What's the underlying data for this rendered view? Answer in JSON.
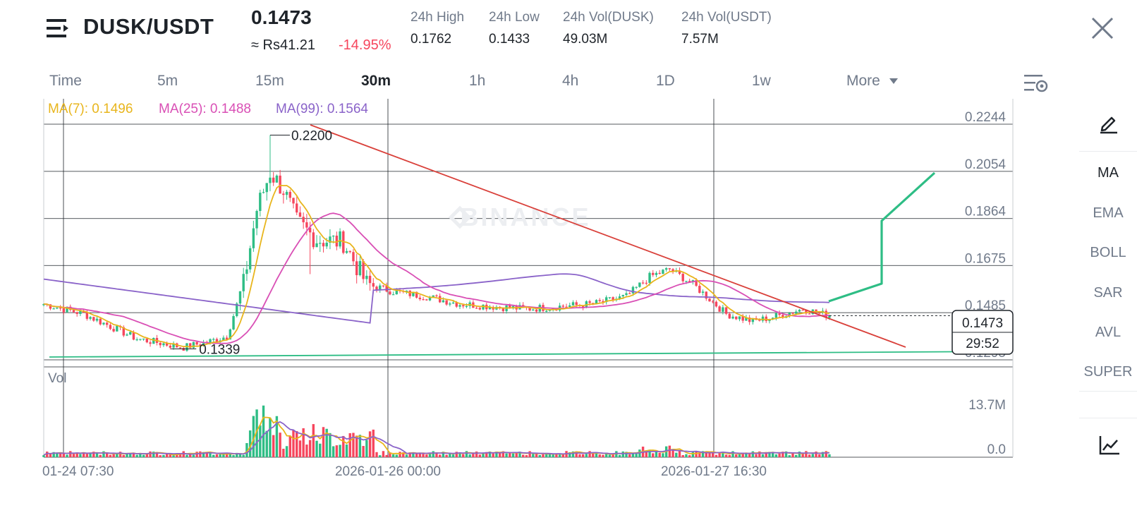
{
  "header": {
    "pair": "DUSK/USDT",
    "last_price": "0.1473",
    "fiat_price": "≈ Rs41.21",
    "change_pct": "-14.95%",
    "stats": [
      {
        "label": "24h High",
        "value": "0.1762"
      },
      {
        "label": "24h Low",
        "value": "0.1433"
      },
      {
        "label": "24h Vol(DUSK)",
        "value": "49.03M"
      },
      {
        "label": "24h Vol(USDT)",
        "value": "7.57M"
      }
    ],
    "icons": {
      "menu": "menu-icon",
      "close": "close-icon"
    }
  },
  "timeframes": {
    "items": [
      "Time",
      "5m",
      "15m",
      "30m",
      "1h",
      "4h",
      "1D",
      "1w",
      "More"
    ],
    "active": "30m",
    "settings_icon": "chart-settings-icon"
  },
  "indicators_sidebar": {
    "items": [
      "MA",
      "EMA",
      "BOLL",
      "SAR",
      "AVL",
      "SUPER"
    ],
    "active": "MA",
    "icons": {
      "draw": "pencil-icon",
      "bottom": "chart-line-icon"
    }
  },
  "colors": {
    "up": "#2ebd85",
    "down": "#f6465d",
    "ma7": "#e8b51c",
    "ma25": "#d94fb5",
    "ma99": "#8a63c9",
    "trendline": "#d9403a",
    "support": "#2ebd85",
    "projection": "#2ebd85"
  },
  "chart_data": {
    "type": "candlestick",
    "interval": "30m",
    "watermark": "BINANCE",
    "y_axis_labels": [
      "0.2244",
      "0.2054",
      "0.1864",
      "0.1675",
      "0.1485",
      "0.1295"
    ],
    "ylim": [
      0.1295,
      0.2244
    ],
    "x_axis_labels": [
      "01-24 07:30",
      "2026-01-26 00:00",
      "2026-01-27 16:30"
    ],
    "ma_legend": [
      {
        "name": "MA(7)",
        "value": "0.1496"
      },
      {
        "name": "MA(25)",
        "value": "0.1488"
      },
      {
        "name": "MA(99)",
        "value": "0.1564"
      }
    ],
    "annotations": {
      "high": "0.2200",
      "low": "0.1339"
    },
    "last_price_tag": {
      "price": "0.1473",
      "countdown": "29:52"
    },
    "volume": {
      "label": "Vol",
      "axis_labels": [
        "13.7M",
        "0.0"
      ],
      "max": 13.7
    },
    "close_anchors": [
      [
        0,
        0.152
      ],
      [
        12,
        0.148
      ],
      [
        28,
        0.138
      ],
      [
        42,
        0.1345
      ],
      [
        50,
        0.137
      ],
      [
        55,
        0.139
      ],
      [
        60,
        0.16
      ],
      [
        64,
        0.19
      ],
      [
        68,
        0.205
      ],
      [
        72,
        0.198
      ],
      [
        76,
        0.185
      ],
      [
        82,
        0.178
      ],
      [
        90,
        0.177
      ],
      [
        97,
        0.16
      ],
      [
        105,
        0.157
      ],
      [
        115,
        0.155
      ],
      [
        125,
        0.152
      ],
      [
        135,
        0.151
      ],
      [
        145,
        0.15
      ],
      [
        155,
        0.151
      ],
      [
        165,
        0.152
      ],
      [
        175,
        0.155
      ],
      [
        182,
        0.163
      ],
      [
        188,
        0.166
      ],
      [
        195,
        0.16
      ],
      [
        205,
        0.148
      ],
      [
        213,
        0.145
      ],
      [
        220,
        0.147
      ],
      [
        228,
        0.15
      ],
      [
        236,
        0.1473
      ]
    ],
    "candle_count": 237
  }
}
